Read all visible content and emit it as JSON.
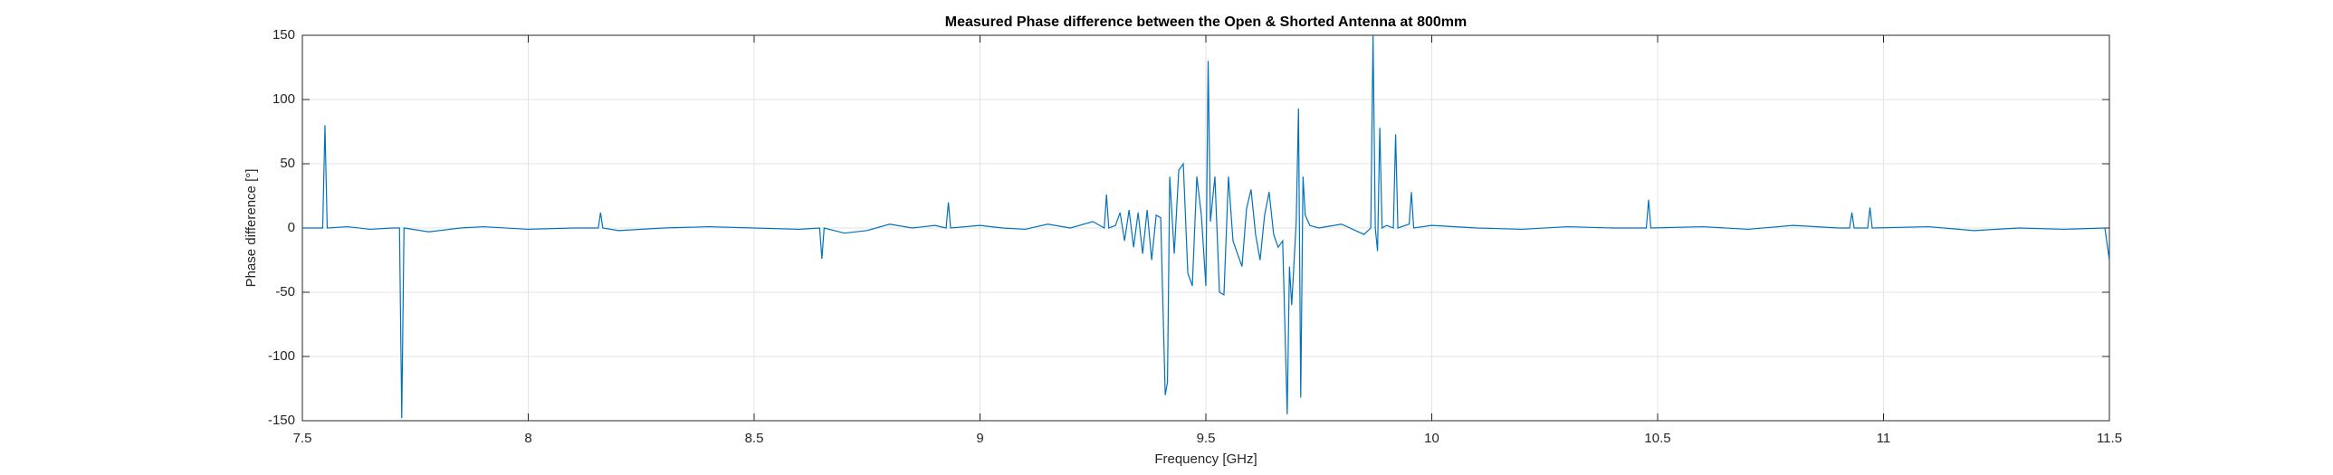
{
  "chart_data": {
    "type": "line",
    "title": "Measured Phase difference between the Open & Shorted Antenna at 800mm",
    "x_label": "Frequency [GHz]",
    "y_label": "Phase difference [°]",
    "grid": true,
    "xlim": [
      7.5,
      11.5
    ],
    "xticks": [
      7.5,
      8,
      8.5,
      9,
      9.5,
      10,
      10.5,
      11,
      11.5
    ],
    "ylim": [
      -150,
      150
    ],
    "yticks": [
      -150,
      -100,
      -50,
      0,
      50,
      100,
      150
    ],
    "x": [
      7.5,
      7.53,
      7.545,
      7.55,
      7.555,
      7.6,
      7.65,
      7.7,
      7.715,
      7.72,
      7.725,
      7.78,
      7.85,
      7.9,
      8.0,
      8.1,
      8.155,
      8.16,
      8.165,
      8.2,
      8.3,
      8.4,
      8.5,
      8.6,
      8.645,
      8.65,
      8.655,
      8.7,
      8.75,
      8.8,
      8.85,
      8.9,
      8.925,
      8.93,
      8.935,
      9.0,
      9.05,
      9.1,
      9.15,
      9.2,
      9.25,
      9.275,
      9.28,
      9.285,
      9.3,
      9.31,
      9.32,
      9.33,
      9.34,
      9.35,
      9.36,
      9.37,
      9.38,
      9.39,
      9.4,
      9.41,
      9.415,
      9.42,
      9.43,
      9.44,
      9.45,
      9.46,
      9.47,
      9.48,
      9.49,
      9.5,
      9.505,
      9.51,
      9.52,
      9.53,
      9.54,
      9.55,
      9.56,
      9.57,
      9.58,
      9.59,
      9.6,
      9.61,
      9.62,
      9.63,
      9.64,
      9.65,
      9.66,
      9.67,
      9.68,
      9.685,
      9.69,
      9.7,
      9.705,
      9.71,
      9.715,
      9.72,
      9.73,
      9.75,
      9.8,
      9.85,
      9.865,
      9.87,
      9.875,
      9.88,
      9.885,
      9.89,
      9.9,
      9.915,
      9.92,
      9.925,
      9.95,
      9.955,
      9.96,
      10.0,
      10.1,
      10.2,
      10.3,
      10.4,
      10.475,
      10.48,
      10.485,
      10.6,
      10.7,
      10.8,
      10.9,
      10.925,
      10.93,
      10.935,
      10.965,
      10.97,
      10.975,
      11.1,
      11.2,
      11.3,
      11.4,
      11.49,
      11.5
    ],
    "series": [
      {
        "color": "#0072BD",
        "values": [
          0,
          0,
          0,
          80,
          0,
          1,
          -1,
          0,
          0,
          -148,
          0,
          -3,
          0,
          1,
          -1,
          0,
          0,
          12,
          0,
          -2,
          0,
          1,
          0,
          -1,
          0,
          -24,
          0,
          -4,
          -2,
          3,
          0,
          2,
          0,
          20,
          0,
          2,
          0,
          -1,
          3,
          0,
          5,
          0,
          26,
          0,
          2,
          12,
          -10,
          14,
          -15,
          12,
          -20,
          14,
          -25,
          10,
          8,
          -130,
          -120,
          40,
          -20,
          45,
          50,
          -35,
          -45,
          40,
          10,
          -45,
          130,
          5,
          40,
          -50,
          -52,
          40,
          -10,
          -20,
          -30,
          15,
          30,
          -5,
          -25,
          10,
          28,
          -5,
          -15,
          -10,
          -145,
          -30,
          -60,
          5,
          93,
          -132,
          40,
          10,
          2,
          0,
          3,
          -5,
          0,
          150,
          0,
          -18,
          78,
          0,
          2,
          0,
          73,
          0,
          3,
          28,
          0,
          2,
          0,
          -1,
          1,
          0,
          0,
          22,
          0,
          1,
          -1,
          2,
          0,
          0,
          12,
          0,
          0,
          16,
          0,
          1,
          -2,
          0,
          -1,
          0,
          -25
        ]
      }
    ]
  }
}
